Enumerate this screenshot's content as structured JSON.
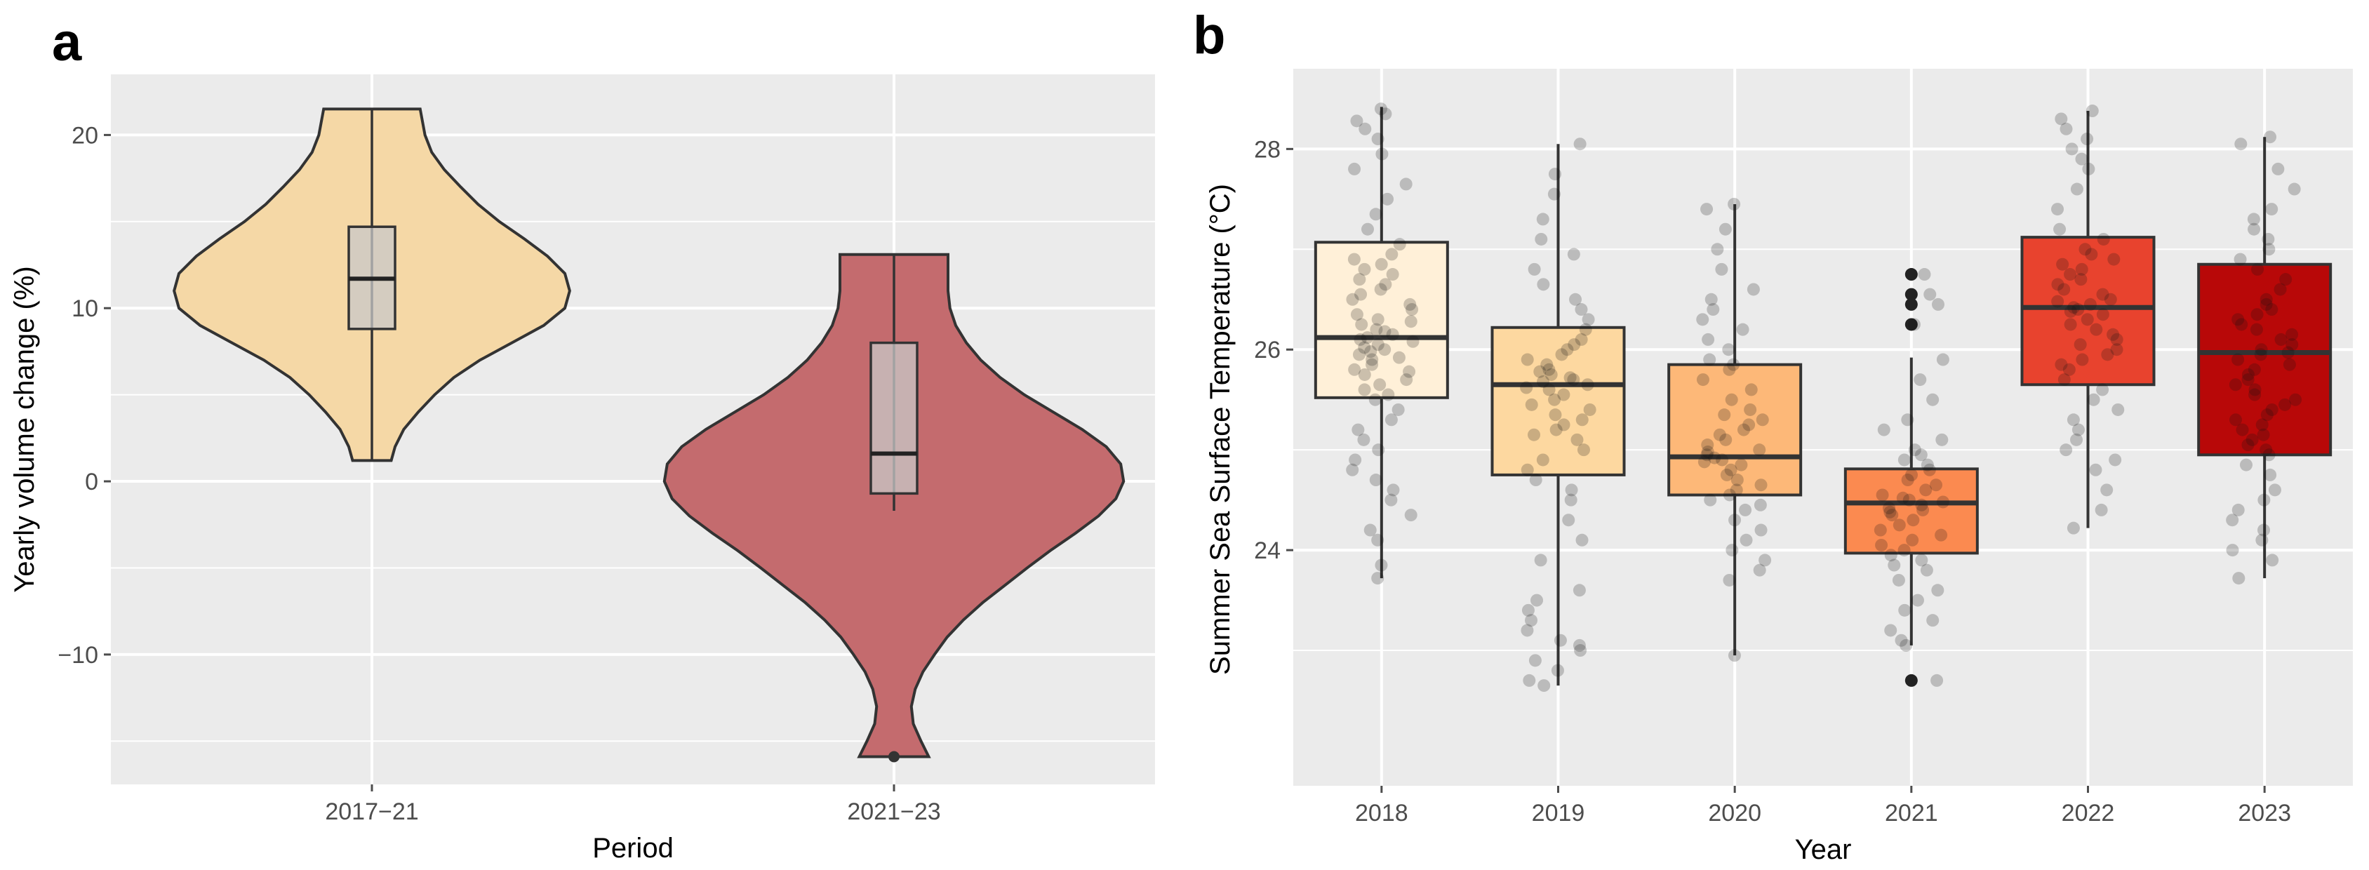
{
  "chart_data": [
    {
      "panel": "a",
      "type": "violin",
      "xlabel": "Period",
      "ylabel": "Yearly volume change (%)",
      "ylim": [
        -17.5,
        23.5
      ],
      "yticks": [
        20,
        10,
        0,
        -10
      ],
      "ytick_labels": [
        "20",
        "10",
        "0",
        "−10"
      ],
      "categories": [
        "2017−21",
        "2021−23"
      ],
      "violins": [
        {
          "category": "2017−21",
          "color": "#f5d8a6",
          "min": 1.2,
          "max": 21.5,
          "q1": 8.8,
          "median": 11.7,
          "q3": 14.7,
          "whisker_low": 1.2,
          "whisker_high": 21.5,
          "outliers": [],
          "density": [
            [
              1.2,
              0.2
            ],
            [
              2,
              0.24
            ],
            [
              3,
              0.33
            ],
            [
              4,
              0.48
            ],
            [
              5,
              0.65
            ],
            [
              6,
              0.85
            ],
            [
              7,
              1.12
            ],
            [
              8,
              1.45
            ],
            [
              9,
              1.78
            ],
            [
              10,
              2.0
            ],
            [
              11,
              2.05
            ],
            [
              12,
              2.0
            ],
            [
              13,
              1.82
            ],
            [
              14,
              1.58
            ],
            [
              15,
              1.32
            ],
            [
              16,
              1.1
            ],
            [
              17,
              0.92
            ],
            [
              18,
              0.75
            ],
            [
              19,
              0.62
            ],
            [
              20,
              0.55
            ],
            [
              21.5,
              0.5
            ]
          ]
        },
        {
          "category": "2021−23",
          "color": "#c46b6e",
          "min": -15.9,
          "max": 13.1,
          "q1": -0.7,
          "median": 1.6,
          "q3": 8.0,
          "whisker_low": -1.7,
          "whisker_high": 13.1,
          "outliers": [
            -15.9
          ],
          "density": [
            [
              -15.9,
              0.36
            ],
            [
              -15,
              0.28
            ],
            [
              -14,
              0.2
            ],
            [
              -13,
              0.18
            ],
            [
              -12,
              0.22
            ],
            [
              -11,
              0.3
            ],
            [
              -10,
              0.42
            ],
            [
              -9,
              0.55
            ],
            [
              -8,
              0.72
            ],
            [
              -7,
              0.92
            ],
            [
              -6,
              1.15
            ],
            [
              -5,
              1.38
            ],
            [
              -4,
              1.62
            ],
            [
              -3,
              1.88
            ],
            [
              -2,
              2.12
            ],
            [
              -1,
              2.3
            ],
            [
              0,
              2.38
            ],
            [
              1,
              2.35
            ],
            [
              2,
              2.2
            ],
            [
              3,
              1.95
            ],
            [
              4,
              1.65
            ],
            [
              5,
              1.35
            ],
            [
              6,
              1.1
            ],
            [
              7,
              0.9
            ],
            [
              8,
              0.75
            ],
            [
              9,
              0.64
            ],
            [
              10,
              0.58
            ],
            [
              11,
              0.56
            ],
            [
              12,
              0.56
            ],
            [
              13.1,
              0.56
            ]
          ]
        }
      ]
    },
    {
      "panel": "b",
      "type": "box",
      "xlabel": "Year",
      "ylabel": "Summer Sea Surface Temperature (°C)",
      "ylim": [
        21.65,
        28.8
      ],
      "yticks": [
        28,
        26,
        24
      ],
      "ytick_labels": [
        "28",
        "26",
        "24"
      ],
      "categories": [
        "2018",
        "2019",
        "2020",
        "2021",
        "2022",
        "2023"
      ],
      "boxes": [
        {
          "category": "2018",
          "color": "#fff0d8",
          "q1": 25.52,
          "median": 26.12,
          "q3": 27.07,
          "whisker_low": 23.72,
          "whisker_high": 28.42,
          "outliers": [],
          "points": [
            28.4,
            28.35,
            28.28,
            28.2,
            28.1,
            27.95,
            27.8,
            27.65,
            27.5,
            27.35,
            27.2,
            27.05,
            26.95,
            26.9,
            26.85,
            26.8,
            26.75,
            26.7,
            26.65,
            26.6,
            26.55,
            26.5,
            26.45,
            26.4,
            26.35,
            26.3,
            26.28,
            26.25,
            26.2,
            26.18,
            26.15,
            26.12,
            26.1,
            26.08,
            26.05,
            26.02,
            26.0,
            25.98,
            25.95,
            25.92,
            25.9,
            25.85,
            25.8,
            25.78,
            25.75,
            25.7,
            25.65,
            25.6,
            25.55,
            25.5,
            25.4,
            25.3,
            25.2,
            25.1,
            25.0,
            24.9,
            24.8,
            24.7,
            24.6,
            24.5,
            24.35,
            24.2,
            24.1,
            23.85,
            23.72
          ]
        },
        {
          "category": "2019",
          "color": "#fdd8a0",
          "q1": 24.75,
          "median": 25.65,
          "q3": 26.22,
          "whisker_low": 22.65,
          "whisker_high": 28.05,
          "outliers": [],
          "points": [
            28.05,
            27.75,
            27.55,
            27.3,
            27.1,
            26.95,
            26.8,
            26.65,
            26.5,
            26.4,
            26.3,
            26.2,
            26.1,
            26.05,
            26.0,
            25.95,
            25.9,
            25.85,
            25.8,
            25.78,
            25.75,
            25.72,
            25.7,
            25.68,
            25.65,
            25.62,
            25.6,
            25.55,
            25.5,
            25.45,
            25.4,
            25.35,
            25.3,
            25.25,
            25.2,
            25.15,
            25.1,
            25.0,
            24.9,
            24.8,
            24.7,
            24.6,
            24.5,
            24.3,
            24.1,
            23.9,
            23.6,
            23.5,
            23.4,
            23.3,
            23.2,
            23.1,
            23.05,
            23.0,
            22.9,
            22.8,
            22.7,
            22.65
          ]
        },
        {
          "category": "2020",
          "color": "#fdb878",
          "q1": 24.55,
          "median": 24.93,
          "q3": 25.85,
          "whisker_low": 22.95,
          "whisker_high": 27.45,
          "outliers": [],
          "points": [
            27.45,
            27.4,
            27.2,
            27.0,
            26.8,
            26.6,
            26.5,
            26.4,
            26.3,
            26.2,
            26.1,
            26.0,
            25.9,
            25.85,
            25.8,
            25.7,
            25.6,
            25.5,
            25.4,
            25.35,
            25.3,
            25.25,
            25.2,
            25.15,
            25.1,
            25.05,
            25.0,
            24.98,
            24.95,
            24.92,
            24.9,
            24.88,
            24.85,
            24.8,
            24.75,
            24.7,
            24.65,
            24.6,
            24.55,
            24.5,
            24.45,
            24.4,
            24.3,
            24.2,
            24.1,
            24.0,
            23.9,
            23.8,
            23.7,
            22.95
          ]
        },
        {
          "category": "2021",
          "color": "#fb8a50",
          "q1": 23.97,
          "median": 24.47,
          "q3": 24.81,
          "whisker_low": 23.05,
          "whisker_high": 25.92,
          "outliers": [
            26.75,
            26.55,
            26.45,
            26.25,
            22.7
          ],
          "points": [
            26.75,
            26.55,
            26.45,
            26.25,
            25.9,
            25.7,
            25.5,
            25.3,
            25.2,
            25.1,
            25.0,
            24.95,
            24.9,
            24.85,
            24.8,
            24.75,
            24.7,
            24.65,
            24.6,
            24.55,
            24.52,
            24.5,
            24.48,
            24.45,
            24.42,
            24.4,
            24.38,
            24.35,
            24.3,
            24.25,
            24.2,
            24.15,
            24.1,
            24.05,
            24.0,
            23.95,
            23.9,
            23.85,
            23.8,
            23.7,
            23.6,
            23.5,
            23.4,
            23.3,
            23.2,
            23.1,
            23.05,
            22.7
          ]
        },
        {
          "category": "2022",
          "color": "#e8432e",
          "q1": 25.65,
          "median": 26.42,
          "q3": 27.12,
          "whisker_low": 24.22,
          "whisker_high": 28.38,
          "outliers": [],
          "points": [
            28.38,
            28.3,
            28.2,
            28.1,
            28.0,
            27.9,
            27.8,
            27.6,
            27.4,
            27.2,
            27.1,
            27.0,
            26.95,
            26.9,
            26.85,
            26.8,
            26.75,
            26.7,
            26.65,
            26.6,
            26.55,
            26.5,
            26.48,
            26.45,
            26.42,
            26.4,
            26.38,
            26.35,
            26.3,
            26.25,
            26.2,
            26.15,
            26.1,
            26.05,
            26.0,
            25.95,
            25.9,
            25.85,
            25.8,
            25.7,
            25.6,
            25.5,
            25.4,
            25.3,
            25.2,
            25.1,
            25.0,
            24.9,
            24.8,
            24.6,
            24.4,
            24.22
          ]
        },
        {
          "category": "2023",
          "color": "#b80808",
          "q1": 24.95,
          "median": 25.97,
          "q3": 26.85,
          "whisker_low": 23.72,
          "whisker_high": 28.12,
          "outliers": [],
          "points": [
            28.12,
            28.05,
            27.8,
            27.6,
            27.4,
            27.3,
            27.2,
            27.1,
            27.0,
            26.9,
            26.8,
            26.7,
            26.6,
            26.5,
            26.45,
            26.4,
            26.35,
            26.3,
            26.25,
            26.2,
            26.15,
            26.1,
            26.05,
            26.0,
            25.97,
            25.95,
            25.9,
            25.85,
            25.8,
            25.75,
            25.7,
            25.65,
            25.6,
            25.55,
            25.5,
            25.45,
            25.4,
            25.35,
            25.3,
            25.25,
            25.2,
            25.15,
            25.1,
            25.05,
            25.0,
            24.95,
            24.85,
            24.75,
            24.6,
            24.5,
            24.4,
            24.3,
            24.2,
            24.1,
            24.0,
            23.9,
            23.72
          ]
        }
      ]
    }
  ]
}
